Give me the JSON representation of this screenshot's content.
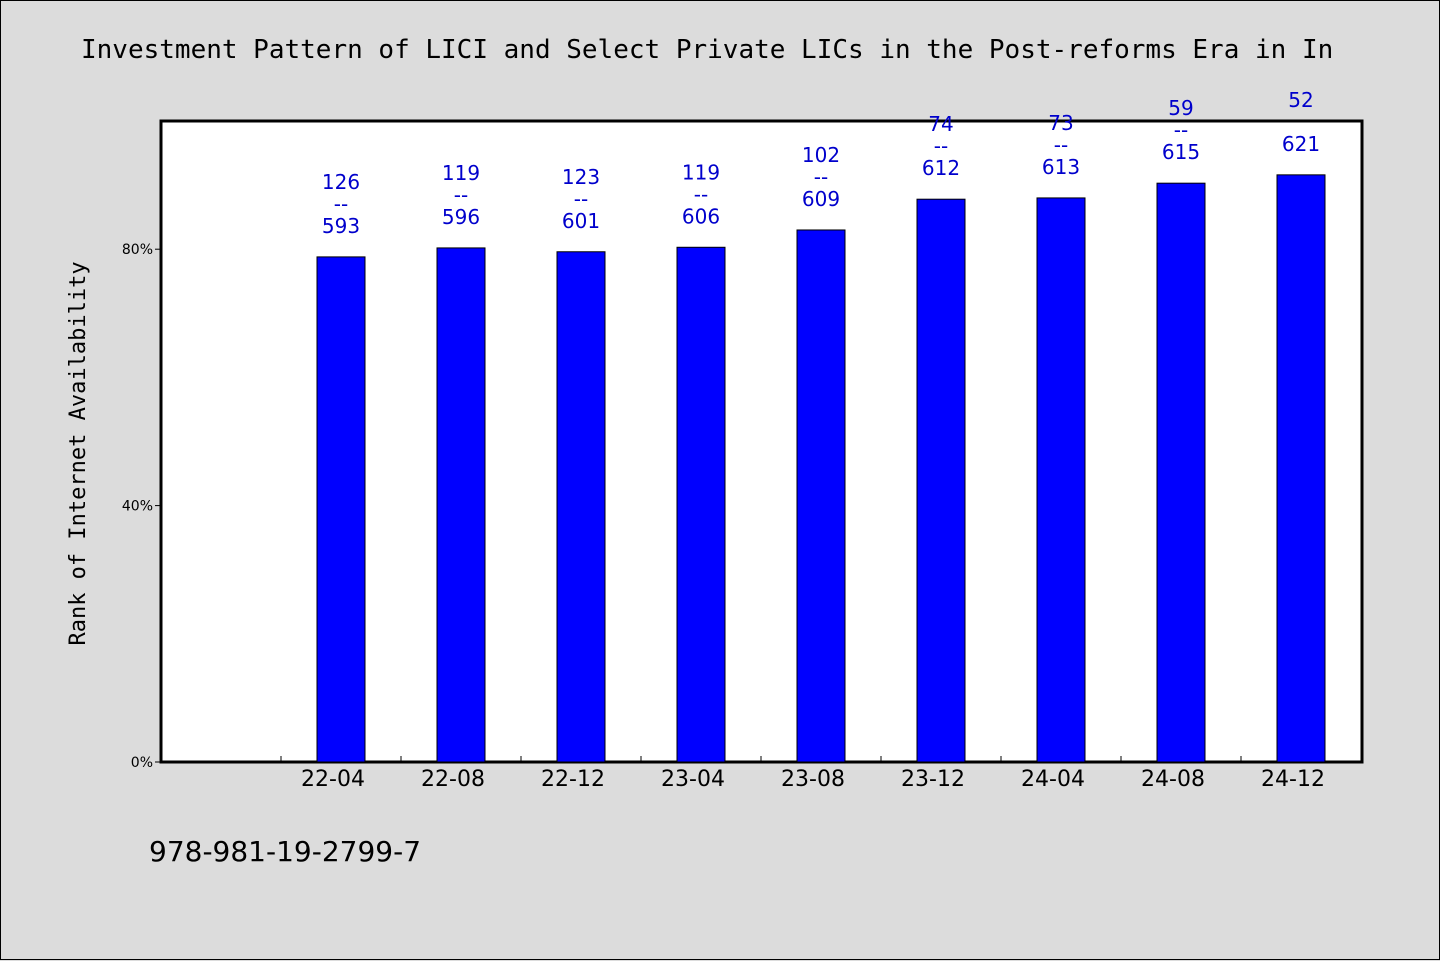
{
  "chart_data": {
    "type": "bar",
    "title": "Investment Pattern of LICI and Select Private LICs in the Post-reforms Era in In",
    "xlabel": "",
    "ylabel": "Rank of Internet Availability",
    "categories": [
      "22-04",
      "22-08",
      "22-12",
      "23-04",
      "23-08",
      "23-12",
      "24-04",
      "24-08",
      "24-12"
    ],
    "values": [
      78.8,
      80.2,
      79.6,
      80.3,
      83.0,
      87.8,
      88.0,
      90.3,
      91.6
    ],
    "ylim": [
      0,
      100
    ],
    "y_ticks": [
      {
        "value": 0,
        "label": "0%"
      },
      {
        "value": 40,
        "label": "40%"
      },
      {
        "value": 80,
        "label": "80%"
      }
    ],
    "annotations": [
      {
        "top": "126",
        "sep": "--",
        "bottom": "593"
      },
      {
        "top": "119",
        "sep": "--",
        "bottom": "596"
      },
      {
        "top": "123",
        "sep": "--",
        "bottom": "601"
      },
      {
        "top": "119",
        "sep": "--",
        "bottom": "606"
      },
      {
        "top": "102",
        "sep": "--",
        "bottom": "609"
      },
      {
        "top": "74",
        "sep": "--",
        "bottom": "612"
      },
      {
        "top": "73",
        "sep": "--",
        "bottom": "613"
      },
      {
        "top": "59",
        "sep": "--",
        "bottom": "615"
      },
      {
        "top": "52",
        "sep": "",
        "bottom": "621"
      }
    ],
    "grid": false,
    "legend": "none",
    "colors": {
      "bar": "#0000ff",
      "label": "#0000cc",
      "plot_bg": "#ffffff",
      "page_bg": "#dcdcdc"
    }
  },
  "footer": {
    "code": "978-981-19-2799-7"
  }
}
